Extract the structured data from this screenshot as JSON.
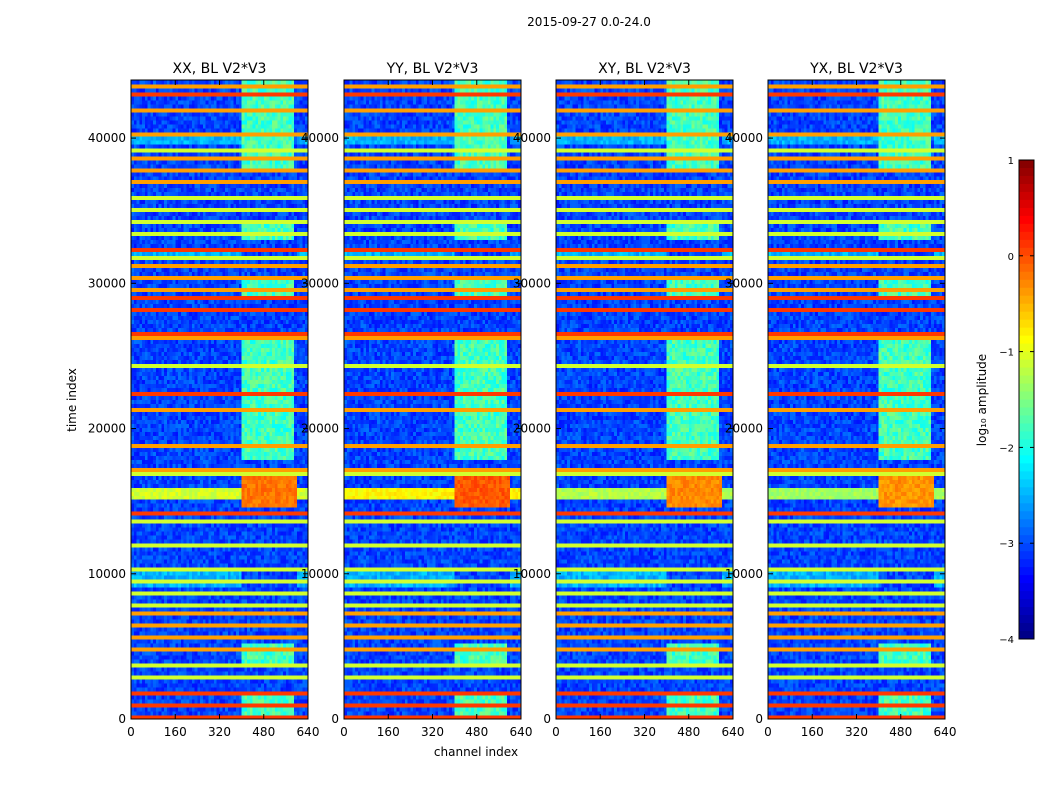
{
  "chart_data": {
    "type": "heatmap",
    "suptitle": "2015-09-27 0.0-24.0",
    "xlabel": "channel index",
    "ylabel": "time index",
    "xlim": [
      0,
      640
    ],
    "ylim": [
      0,
      44000
    ],
    "xticks": [
      0,
      160,
      320,
      480,
      640
    ],
    "yticks": [
      0,
      10000,
      20000,
      30000,
      40000
    ],
    "panels": [
      {
        "title": "XX, BL V2*V3",
        "burst_strength": 0.85
      },
      {
        "title": "YY, BL V2*V3",
        "burst_strength": 1.0
      },
      {
        "title": "XY, BL V2*V3",
        "burst_strength": 0.75
      },
      {
        "title": "YX, BL V2*V3",
        "burst_strength": 0.7
      }
    ],
    "colorbar": {
      "label": "log₁₀ amplitude",
      "range": [
        -4,
        1
      ],
      "ticks": [
        "1",
        "0",
        "−1",
        "−2",
        "−3",
        "−4"
      ],
      "colormap": [
        "#00007f",
        "#0000ff",
        "#007fff",
        "#00ffff",
        "#7fff7f",
        "#ffff00",
        "#ff7f00",
        "#ff0000",
        "#7f0000"
      ]
    },
    "active_channel_band": [
      405,
      600
    ],
    "bright_band_rows": [
      15400,
      15600
    ],
    "hot_time_range": [
      14500,
      17000
    ],
    "flagged_rows": [
      150,
      900,
      1800,
      2800,
      3600,
      4900,
      5600,
      6400,
      7300,
      7900,
      8600,
      9400,
      10300,
      11900,
      13500,
      14100,
      16800,
      17300,
      18900,
      21200,
      22400,
      24300,
      26200,
      26600,
      28200,
      28900,
      29500,
      30500,
      31100,
      31800,
      32400,
      33300,
      34100,
      35100,
      36000,
      36900,
      37800,
      38600,
      39300,
      40300,
      41900,
      43100,
      43600
    ]
  }
}
